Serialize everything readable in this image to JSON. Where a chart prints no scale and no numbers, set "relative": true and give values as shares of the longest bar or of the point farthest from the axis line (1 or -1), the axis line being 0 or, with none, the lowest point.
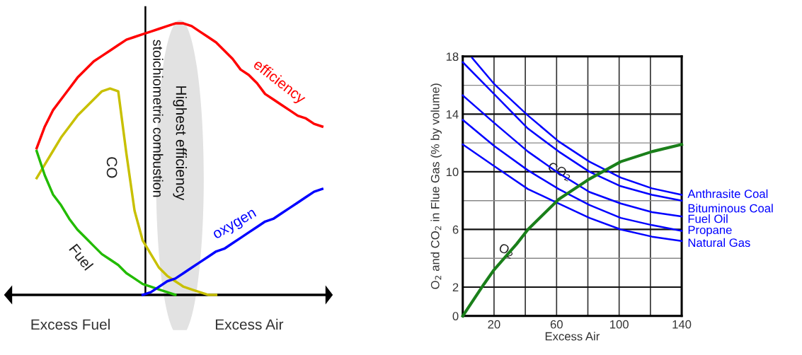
{
  "chart_data": [
    {
      "type": "line",
      "relative": true,
      "legend": false,
      "categories": [
        null,
        null,
        null,
        null,
        null,
        null,
        null,
        null,
        null,
        null,
        null,
        null,
        null,
        null,
        null,
        null,
        null,
        null,
        null,
        null,
        null,
        null,
        null,
        null,
        null,
        null,
        null,
        null,
        null,
        null,
        null,
        null,
        null,
        null,
        null,
        null
      ],
      "annotations": [
        "stoichiometric combustion",
        "Highest efficiency",
        "Excess Fuel",
        "Excess Air"
      ],
      "series": [
        {
          "name": "efficiency",
          "color": "#ff0000",
          "values": [
            0.54,
            0.62,
            0.68,
            0.72,
            0.76,
            0.8,
            0.83,
            0.86,
            0.88,
            0.9,
            0.92,
            0.94,
            0.95,
            0.96,
            0.97,
            0.98,
            0.99,
            1.0,
            1.0,
            0.99,
            0.97,
            0.95,
            0.93,
            0.9,
            0.87,
            0.83,
            0.81,
            0.78,
            0.74,
            0.72,
            0.7,
            0.68,
            0.66,
            0.65,
            0.63,
            0.62
          ]
        },
        {
          "name": "CO",
          "color": "#c8c000",
          "values": [
            0.43,
            0.48,
            0.53,
            0.58,
            0.62,
            0.66,
            0.69,
            0.72,
            0.75,
            0.76,
            0.75,
            0.52,
            0.31,
            0.2,
            0.15,
            0.1,
            0.07,
            0.05,
            0.03,
            0.02,
            0.01,
            0.0,
            0.0,
            null,
            null,
            null,
            null,
            null,
            null,
            null,
            null,
            null,
            null,
            null,
            null,
            null
          ]
        },
        {
          "name": "Fuel",
          "color": "#22bb00",
          "values": [
            0.53,
            0.44,
            0.37,
            0.33,
            0.28,
            0.24,
            0.21,
            0.18,
            0.15,
            0.13,
            0.11,
            0.08,
            0.06,
            0.04,
            0.03,
            0.02,
            0.01,
            0.0,
            null,
            null,
            null,
            null,
            null,
            null,
            null,
            null,
            null,
            null,
            null,
            null,
            null,
            null,
            null,
            null,
            null,
            null
          ]
        },
        {
          "name": "oxygen",
          "color": "#0000ff",
          "values": [
            null,
            null,
            null,
            null,
            null,
            null,
            null,
            null,
            null,
            null,
            null,
            null,
            null,
            0.0,
            0.01,
            0.03,
            0.05,
            0.06,
            0.08,
            0.1,
            0.12,
            0.14,
            0.16,
            0.17,
            0.19,
            0.21,
            0.23,
            0.25,
            0.27,
            0.28,
            0.3,
            0.32,
            0.34,
            0.36,
            0.38,
            0.39
          ]
        }
      ]
    },
    {
      "type": "line",
      "xlabel": "Excess Air",
      "ylabel": "O$_{2}$ and CO$_{2}$ in Flue Gas (% by volume)",
      "legend": false,
      "grid": true,
      "marker": "none",
      "line_style": "solid",
      "xlim": [
        0,
        140
      ],
      "ylim": [
        0,
        18
      ],
      "xticks": [
        20,
        {
          "value": 40,
          "label": null
        },
        60,
        {
          "value": 80,
          "label": null
        },
        100,
        {
          "value": 120,
          "label": null
        },
        140
      ],
      "yticks": [
        0,
        2,
        {
          "value": 4,
          "label": null
        },
        6,
        {
          "value": 8,
          "label": null
        },
        10,
        {
          "value": 12,
          "label": null
        },
        14,
        {
          "value": 16,
          "label": null
        },
        18
      ],
      "annotations": [
        {
          "text": "CO$_{2}$",
          "x": 62,
          "y": 10
        },
        {
          "text": "O$_{2}$",
          "x": 28,
          "y": 4.5
        }
      ],
      "series": [
        {
          "name": "Anthrasite Coal",
          "color": "#0000ff",
          "x": [
            6,
            20,
            41.7,
            61.4,
            81,
            101,
            121,
            140
          ],
          "values": [
            17.9,
            16.1,
            13.9,
            12.1,
            10.7,
            9.6,
            8.85,
            8.4
          ]
        },
        {
          "name": "Bituminous Coal",
          "color": "#0000ff",
          "x": [
            0,
            20,
            41.7,
            61.4,
            81,
            101,
            121,
            140
          ],
          "values": [
            17.6,
            15.4,
            13.0,
            11.4,
            10.0,
            9.0,
            8.4,
            8.0
          ]
        },
        {
          "name": "Fuel Oil",
          "color": "#0000ff",
          "x": [
            0,
            20,
            41.7,
            61.4,
            81,
            101,
            121,
            140
          ],
          "values": [
            15.3,
            13.4,
            11.4,
            9.9,
            8.6,
            7.8,
            7.2,
            6.9
          ]
        },
        {
          "name": "Propane",
          "color": "#0000ff",
          "x": [
            0,
            20,
            41.7,
            61.4,
            81,
            101,
            121,
            140
          ],
          "values": [
            13.6,
            11.8,
            10.1,
            8.8,
            7.7,
            6.8,
            6.3,
            5.9
          ]
        },
        {
          "name": "Natural Gas",
          "color": "#0000ff",
          "x": [
            0,
            20,
            41.7,
            61.4,
            81,
            101,
            121,
            140
          ],
          "values": [
            11.9,
            10.4,
            8.8,
            7.8,
            6.8,
            6.0,
            5.5,
            5.2
          ]
        },
        {
          "color": "#1a7f1a",
          "x": [
            0,
            13.5,
            20,
            34.5,
            41.7,
            61.4,
            81,
            101,
            121,
            140
          ],
          "values": [
            0,
            2.2,
            3.2,
            5.0,
            6.0,
            8.1,
            9.5,
            10.7,
            11.4,
            11.9
          ]
        }
      ]
    }
  ]
}
